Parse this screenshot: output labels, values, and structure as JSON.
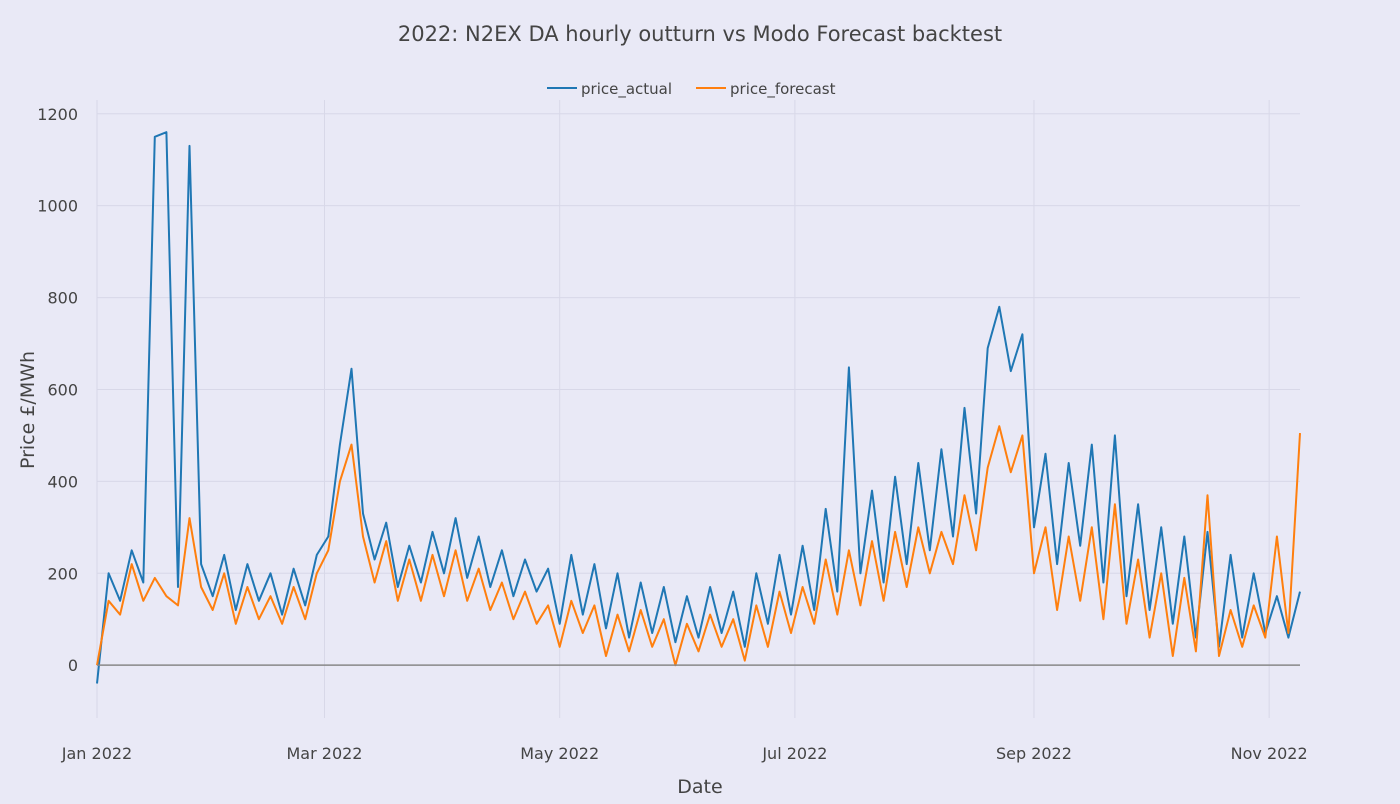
{
  "chart_data": {
    "type": "line",
    "title": "2022: N2EX DA hourly outturn vs Modo Forecast backtest",
    "xlabel": "Date",
    "ylabel": "Price £/MWh",
    "xlim": [
      "2022-01-01",
      "2022-11-09"
    ],
    "ylim": [
      -115,
      1230
    ],
    "grid": true,
    "legend_position": "top-center",
    "x_ticks": [
      {
        "date": "2022-01-01",
        "label": "Jan 2022"
      },
      {
        "date": "2022-03-01",
        "label": "Mar 2022"
      },
      {
        "date": "2022-05-01",
        "label": "May 2022"
      },
      {
        "date": "2022-07-01",
        "label": "Jul 2022"
      },
      {
        "date": "2022-09-01",
        "label": "Sep 2022"
      },
      {
        "date": "2022-11-01",
        "label": "Nov 2022"
      }
    ],
    "y_ticks": [
      0,
      200,
      400,
      600,
      800,
      1000,
      1200
    ],
    "x": [
      "2022-01-01",
      "2022-01-04",
      "2022-01-07",
      "2022-01-10",
      "2022-01-13",
      "2022-01-16",
      "2022-01-19",
      "2022-01-22",
      "2022-01-25",
      "2022-01-28",
      "2022-01-31",
      "2022-02-03",
      "2022-02-06",
      "2022-02-09",
      "2022-02-12",
      "2022-02-15",
      "2022-02-18",
      "2022-02-21",
      "2022-02-24",
      "2022-02-27",
      "2022-03-02",
      "2022-03-05",
      "2022-03-08",
      "2022-03-11",
      "2022-03-14",
      "2022-03-17",
      "2022-03-20",
      "2022-03-23",
      "2022-03-26",
      "2022-03-29",
      "2022-04-01",
      "2022-04-04",
      "2022-04-07",
      "2022-04-10",
      "2022-04-13",
      "2022-04-16",
      "2022-04-19",
      "2022-04-22",
      "2022-04-25",
      "2022-04-28",
      "2022-05-01",
      "2022-05-04",
      "2022-05-07",
      "2022-05-10",
      "2022-05-13",
      "2022-05-16",
      "2022-05-19",
      "2022-05-22",
      "2022-05-25",
      "2022-05-28",
      "2022-05-31",
      "2022-06-03",
      "2022-06-06",
      "2022-06-09",
      "2022-06-12",
      "2022-06-15",
      "2022-06-18",
      "2022-06-21",
      "2022-06-24",
      "2022-06-27",
      "2022-06-30",
      "2022-07-03",
      "2022-07-06",
      "2022-07-09",
      "2022-07-12",
      "2022-07-15",
      "2022-07-18",
      "2022-07-21",
      "2022-07-24",
      "2022-07-27",
      "2022-07-30",
      "2022-08-02",
      "2022-08-05",
      "2022-08-08",
      "2022-08-11",
      "2022-08-14",
      "2022-08-17",
      "2022-08-20",
      "2022-08-23",
      "2022-08-26",
      "2022-08-29",
      "2022-09-01",
      "2022-09-04",
      "2022-09-07",
      "2022-09-10",
      "2022-09-13",
      "2022-09-16",
      "2022-09-19",
      "2022-09-22",
      "2022-09-25",
      "2022-09-28",
      "2022-10-01",
      "2022-10-04",
      "2022-10-07",
      "2022-10-10",
      "2022-10-13",
      "2022-10-16",
      "2022-10-19",
      "2022-10-22",
      "2022-10-25",
      "2022-10-28",
      "2022-10-31",
      "2022-11-03",
      "2022-11-06",
      "2022-11-09"
    ],
    "series": [
      {
        "name": "price_actual",
        "color": "#1f77b4",
        "values": [
          -40,
          200,
          140,
          250,
          180,
          1150,
          1160,
          170,
          1130,
          220,
          150,
          240,
          120,
          220,
          140,
          200,
          110,
          210,
          130,
          240,
          280,
          480,
          645,
          330,
          230,
          310,
          170,
          260,
          180,
          290,
          200,
          320,
          190,
          280,
          170,
          250,
          150,
          230,
          160,
          210,
          90,
          240,
          110,
          220,
          80,
          200,
          60,
          180,
          70,
          170,
          50,
          150,
          60,
          170,
          70,
          160,
          40,
          200,
          90,
          240,
          110,
          260,
          120,
          340,
          160,
          648,
          200,
          380,
          180,
          410,
          220,
          440,
          250,
          470,
          280,
          560,
          330,
          690,
          780,
          640,
          720,
          300,
          460,
          220,
          440,
          260,
          480,
          180,
          500,
          150,
          350,
          120,
          300,
          90,
          280,
          60,
          290,
          40,
          240,
          60,
          200,
          70,
          150,
          60,
          160
        ]
      },
      {
        "name": "price_forecast",
        "color": "#ff7f0e",
        "values": [
          0,
          140,
          110,
          220,
          140,
          190,
          150,
          130,
          320,
          170,
          120,
          200,
          90,
          170,
          100,
          150,
          90,
          170,
          100,
          200,
          250,
          400,
          480,
          280,
          180,
          270,
          140,
          230,
          140,
          240,
          150,
          250,
          140,
          210,
          120,
          180,
          100,
          160,
          90,
          130,
          40,
          140,
          70,
          130,
          20,
          110,
          30,
          120,
          40,
          100,
          0,
          90,
          30,
          110,
          40,
          100,
          10,
          130,
          40,
          160,
          70,
          170,
          90,
          230,
          110,
          250,
          130,
          270,
          140,
          290,
          170,
          300,
          200,
          290,
          220,
          370,
          250,
          430,
          520,
          420,
          500,
          200,
          300,
          120,
          280,
          140,
          300,
          100,
          350,
          90,
          230,
          60,
          200,
          20,
          190,
          30,
          370,
          20,
          120,
          40,
          130,
          60,
          280,
          70,
          505
        ]
      }
    ]
  }
}
